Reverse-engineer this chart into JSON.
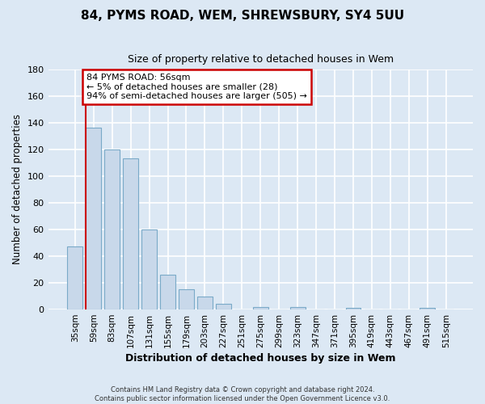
{
  "title": "84, PYMS ROAD, WEM, SHREWSBURY, SY4 5UU",
  "subtitle": "Size of property relative to detached houses in Wem",
  "xlabel": "Distribution of detached houses by size in Wem",
  "ylabel": "Number of detached properties",
  "bar_labels": [
    "35sqm",
    "59sqm",
    "83sqm",
    "107sqm",
    "131sqm",
    "155sqm",
    "179sqm",
    "203sqm",
    "227sqm",
    "251sqm",
    "275sqm",
    "299sqm",
    "323sqm",
    "347sqm",
    "371sqm",
    "395sqm",
    "419sqm",
    "443sqm",
    "467sqm",
    "491sqm",
    "515sqm"
  ],
  "bar_values": [
    47,
    136,
    120,
    113,
    60,
    26,
    15,
    10,
    4,
    0,
    2,
    0,
    2,
    0,
    0,
    1,
    0,
    0,
    0,
    1,
    0
  ],
  "bar_color": "#c8d8ea",
  "bar_edge_color": "#7aaac8",
  "background_color": "#dce8f4",
  "plot_bg_color": "#dce8f4",
  "grid_color": "#ffffff",
  "ylim": [
    0,
    180
  ],
  "yticks": [
    0,
    20,
    40,
    60,
    80,
    100,
    120,
    140,
    160,
    180
  ],
  "annotation_title": "84 PYMS ROAD: 56sqm",
  "annotation_line1": "← 5% of detached houses are smaller (28)",
  "annotation_line2": "94% of semi-detached houses are larger (505) →",
  "annotation_box_color": "#ffffff",
  "annotation_border_color": "#cc0000",
  "red_line_color": "#cc0000",
  "footer1": "Contains HM Land Registry data © Crown copyright and database right 2024.",
  "footer2": "Contains public sector information licensed under the Open Government Licence v3.0."
}
